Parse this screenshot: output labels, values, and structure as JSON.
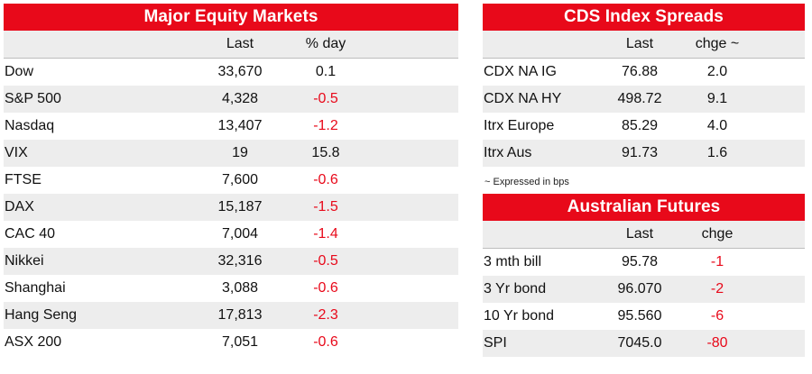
{
  "equity": {
    "title": "Major Equity Markets",
    "col_last": "Last",
    "col_change": "% day",
    "rows": [
      {
        "name": "Dow",
        "last": "33,670",
        "change": "0.1",
        "negative": false
      },
      {
        "name": "S&P 500",
        "last": "4,328",
        "change": "-0.5",
        "negative": true
      },
      {
        "name": "Nasdaq",
        "last": "13,407",
        "change": "-1.2",
        "negative": true
      },
      {
        "name": "VIX",
        "last": "19",
        "change": "15.8",
        "negative": false
      },
      {
        "name": "FTSE",
        "last": "7,600",
        "change": "-0.6",
        "negative": true
      },
      {
        "name": "DAX",
        "last": "15,187",
        "change": "-1.5",
        "negative": true
      },
      {
        "name": "CAC 40",
        "last": "7,004",
        "change": "-1.4",
        "negative": true
      },
      {
        "name": "Nikkei",
        "last": "32,316",
        "change": "-0.5",
        "negative": true
      },
      {
        "name": "Shanghai",
        "last": "3,088",
        "change": "-0.6",
        "negative": true
      },
      {
        "name": "Hang Seng",
        "last": "17,813",
        "change": "-2.3",
        "negative": true
      },
      {
        "name": "ASX 200",
        "last": "7,051",
        "change": "-0.6",
        "negative": true
      }
    ]
  },
  "cds": {
    "title": "CDS Index Spreads",
    "col_last": "Last",
    "col_change": "chge ~",
    "rows": [
      {
        "name": "CDX NA IG",
        "last": "76.88",
        "change": "2.0",
        "negative": false
      },
      {
        "name": "CDX NA HY",
        "last": "498.72",
        "change": "9.1",
        "negative": false
      },
      {
        "name": "Itrx Europe",
        "last": "85.29",
        "change": "4.0",
        "negative": false
      },
      {
        "name": "Itrx Aus",
        "last": "91.73",
        "change": "1.6",
        "negative": false
      }
    ],
    "note": "~ Expressed in bps"
  },
  "futures": {
    "title": "Australian Futures",
    "col_last": "Last",
    "col_change": "chge",
    "rows": [
      {
        "name": "3 mth bill",
        "last": "95.78",
        "change": "-1",
        "negative": true
      },
      {
        "name": "3 Yr bond",
        "last": "96.070",
        "change": "-2",
        "negative": true
      },
      {
        "name": "10 Yr bond",
        "last": "95.560",
        "change": "-6",
        "negative": true
      },
      {
        "name": "SPI",
        "last": "7045.0",
        "change": "-80",
        "negative": true
      }
    ]
  },
  "colors": {
    "accent": "#e8091a",
    "shade": "#ededed",
    "negative": "#e8091a"
  }
}
